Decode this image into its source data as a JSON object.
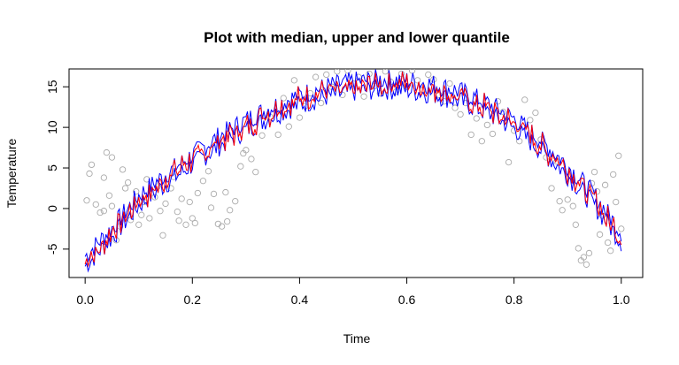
{
  "chart_data": {
    "type": "scatter",
    "title": "Plot with median, upper and lower quantile",
    "xlabel": "Time",
    "ylabel": "Temperature",
    "xlim": [
      -0.03,
      1.04
    ],
    "ylim": [
      -8.5,
      17.2
    ],
    "xticks": [
      "0.0",
      "0.2",
      "0.4",
      "0.6",
      "0.8",
      "1.0"
    ],
    "yticks": [
      "-5",
      "0",
      "5",
      "10",
      "15"
    ],
    "grid": false,
    "legend": "none",
    "mean_curve": {
      "x": [
        0,
        0.05,
        0.1,
        0.15,
        0.2,
        0.25,
        0.3,
        0.35,
        0.4,
        0.45,
        0.5,
        0.55,
        0.6,
        0.65,
        0.7,
        0.75,
        0.8,
        0.85,
        0.9,
        0.95,
        1.0
      ],
      "y": [
        -6.5,
        -3.0,
        1.0,
        3.6,
        6.0,
        8.3,
        10.3,
        12.0,
        13.4,
        14.4,
        15.0,
        15.3,
        15.2,
        14.7,
        13.8,
        12.4,
        10.5,
        7.8,
        4.7,
        1.0,
        -3.5
      ]
    },
    "series": [
      {
        "color": "#0000ff",
        "offset": 0.6,
        "values": "upper quantile band"
      },
      {
        "color": "#0000ff",
        "offset": -0.6,
        "values": "lower quantile band"
      },
      {
        "color": "#ff0000",
        "offset": 0.0,
        "values": "median"
      }
    ],
    "scatter_points": [
      [
        0.003,
        1.0
      ],
      [
        0.008,
        4.3
      ],
      [
        0.012,
        5.4
      ],
      [
        0.02,
        0.5
      ],
      [
        0.028,
        -0.5
      ],
      [
        0.035,
        3.8
      ],
      [
        0.04,
        6.9
      ],
      [
        0.045,
        1.6
      ],
      [
        0.05,
        0.3
      ],
      [
        0.058,
        -3.9
      ],
      [
        0.065,
        -2.2
      ],
      [
        0.07,
        4.8
      ],
      [
        0.08,
        3.2
      ],
      [
        0.085,
        -1.4
      ],
      [
        0.095,
        2.1
      ],
      [
        0.1,
        -2.0
      ],
      [
        0.105,
        -0.8
      ],
      [
        0.115,
        3.6
      ],
      [
        0.12,
        -1.2
      ],
      [
        0.13,
        1.4
      ],
      [
        0.14,
        -0.3
      ],
      [
        0.145,
        -3.3
      ],
      [
        0.15,
        0.6
      ],
      [
        0.16,
        2.5
      ],
      [
        0.165,
        3.9
      ],
      [
        0.172,
        -0.4
      ],
      [
        0.18,
        1.2
      ],
      [
        0.188,
        -2.0
      ],
      [
        0.195,
        0.8
      ],
      [
        0.2,
        -1.2
      ],
      [
        0.21,
        1.9
      ],
      [
        0.22,
        3.4
      ],
      [
        0.23,
        4.6
      ],
      [
        0.24,
        1.8
      ],
      [
        0.248,
        -1.9
      ],
      [
        0.255,
        -2.2
      ],
      [
        0.262,
        2.0
      ],
      [
        0.27,
        -0.2
      ],
      [
        0.28,
        0.9
      ],
      [
        0.29,
        5.2
      ],
      [
        0.3,
        7.2
      ],
      [
        0.31,
        6.1
      ],
      [
        0.318,
        4.5
      ],
      [
        0.33,
        9.0
      ],
      [
        0.345,
        11.3
      ],
      [
        0.36,
        9.1
      ],
      [
        0.37,
        13.6
      ],
      [
        0.38,
        10.1
      ],
      [
        0.39,
        15.8
      ],
      [
        0.4,
        11.2
      ],
      [
        0.41,
        12.6
      ],
      [
        0.42,
        14.2
      ],
      [
        0.43,
        16.2
      ],
      [
        0.44,
        13.0
      ],
      [
        0.45,
        16.5
      ],
      [
        0.46,
        15.0
      ],
      [
        0.47,
        16.9
      ],
      [
        0.48,
        14.0
      ],
      [
        0.49,
        17.0
      ],
      [
        0.5,
        15.4
      ],
      [
        0.51,
        16.2
      ],
      [
        0.52,
        13.8
      ],
      [
        0.53,
        16.6
      ],
      [
        0.54,
        15.1
      ],
      [
        0.55,
        14.2
      ],
      [
        0.56,
        16.9
      ],
      [
        0.57,
        15.6
      ],
      [
        0.58,
        14.4
      ],
      [
        0.59,
        16.6
      ],
      [
        0.6,
        15.0
      ],
      [
        0.61,
        17.0
      ],
      [
        0.62,
        15.8
      ],
      [
        0.63,
        14.6
      ],
      [
        0.64,
        16.5
      ],
      [
        0.65,
        15.9
      ],
      [
        0.66,
        14.0
      ],
      [
        0.67,
        13.2
      ],
      [
        0.68,
        15.4
      ],
      [
        0.69,
        12.4
      ],
      [
        0.7,
        11.6
      ],
      [
        0.71,
        13.0
      ],
      [
        0.72,
        9.1
      ],
      [
        0.73,
        11.1
      ],
      [
        0.74,
        8.3
      ],
      [
        0.75,
        10.3
      ],
      [
        0.76,
        9.2
      ],
      [
        0.77,
        13.2
      ],
      [
        0.78,
        11.9
      ],
      [
        0.79,
        5.7
      ],
      [
        0.8,
        9.6
      ],
      [
        0.81,
        8.3
      ],
      [
        0.82,
        13.4
      ],
      [
        0.83,
        10.9
      ],
      [
        0.84,
        11.8
      ],
      [
        0.85,
        8.5
      ],
      [
        0.86,
        6.3
      ],
      [
        0.87,
        2.5
      ],
      [
        0.88,
        5.8
      ],
      [
        0.885,
        0.9
      ],
      [
        0.89,
        -0.2
      ],
      [
        0.9,
        1.1
      ],
      [
        0.91,
        0.3
      ],
      [
        0.915,
        -2.0
      ],
      [
        0.92,
        -4.9
      ],
      [
        0.925,
        -6.4
      ],
      [
        0.93,
        -6.0
      ],
      [
        0.935,
        -6.9
      ],
      [
        0.94,
        -5.5
      ],
      [
        0.945,
        3.1
      ],
      [
        0.95,
        4.5
      ],
      [
        0.955,
        2.1
      ],
      [
        0.96,
        -3.2
      ],
      [
        0.965,
        -0.9
      ],
      [
        0.97,
        2.9
      ],
      [
        0.975,
        -4.2
      ],
      [
        0.98,
        -5.2
      ],
      [
        0.985,
        4.2
      ],
      [
        0.99,
        0.8
      ],
      [
        0.995,
        6.5
      ],
      [
        1.0,
        -2.5
      ],
      [
        0.05,
        6.3
      ],
      [
        0.075,
        2.5
      ],
      [
        0.11,
        0.8
      ],
      [
        0.135,
        2.7
      ],
      [
        0.175,
        -1.5
      ],
      [
        0.205,
        -1.8
      ],
      [
        0.235,
        0.1
      ],
      [
        0.265,
        -1.6
      ],
      [
        0.295,
        6.8
      ],
      [
        0.035,
        -0.3
      ]
    ]
  }
}
